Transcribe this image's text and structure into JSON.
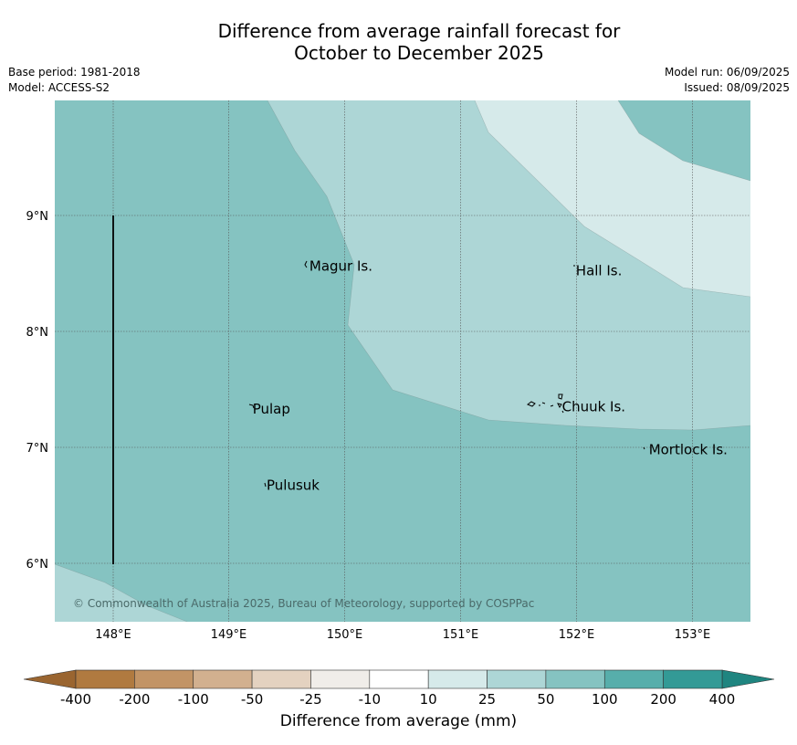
{
  "title_line1": "Difference from average rainfall forecast for",
  "title_line2": "October to December 2025",
  "base_period": "Base period: 1981-2018",
  "model": "Model: ACCESS-S2",
  "model_run": "Model run: 06/09/2025",
  "issued": "Issued: 08/09/2025",
  "copyright": "© Commonwealth of Australia 2025, Bureau of Meteorology, supported by COSPPac",
  "axes": {
    "lon_ticks": [
      "148°E",
      "149°E",
      "150°E",
      "151°E",
      "152°E",
      "153°E"
    ],
    "lat_ticks": [
      "9°N",
      "8°N",
      "7°N",
      "6°N"
    ]
  },
  "places": [
    {
      "name": "Magur Is.",
      "lon": 149.67,
      "lat": 8.57
    },
    {
      "name": "Hall Is.",
      "lon": 151.97,
      "lat": 8.53
    },
    {
      "name": "Pulap",
      "lon": 149.18,
      "lat": 7.34
    },
    {
      "name": "Chuuk Is.",
      "lon": 151.85,
      "lat": 7.36
    },
    {
      "name": "Mortlock Is.",
      "lon": 152.6,
      "lat": 6.99
    },
    {
      "name": "Pulusuk",
      "lon": 149.3,
      "lat": 6.68
    }
  ],
  "colorbar": {
    "title": "Difference from average (mm)",
    "labels": [
      "-400",
      "-200",
      "-100",
      "-50",
      "-25",
      "-10",
      "10",
      "25",
      "50",
      "100",
      "200",
      "400"
    ],
    "colors": [
      "#b07a40",
      "#c29466",
      "#d2b08f",
      "#e4d2c0",
      "#f0ede9",
      "#ffffff",
      "#d6eaea",
      "#add6d6",
      "#85c3c1",
      "#57aeab",
      "#339a96"
    ],
    "under_color": "#9a6530",
    "over_color": "#1f8580"
  }
}
